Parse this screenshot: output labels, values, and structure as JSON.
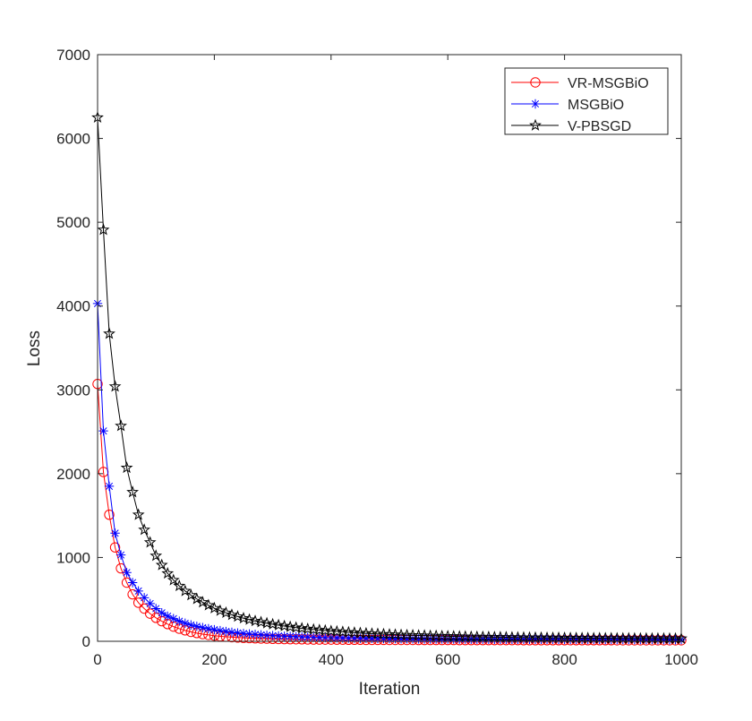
{
  "chart_data": {
    "type": "line",
    "title": "",
    "xlabel": "Iteration",
    "ylabel": "Loss",
    "xlim": [
      0,
      1000
    ],
    "ylim": [
      0,
      7000
    ],
    "xticks": [
      0,
      200,
      400,
      600,
      800,
      1000
    ],
    "yticks": [
      0,
      1000,
      2000,
      3000,
      4000,
      5000,
      6000,
      7000
    ],
    "grid": false,
    "legend_position": "top-right",
    "x": [
      0,
      10,
      20,
      30,
      40,
      50,
      60,
      70,
      80,
      90,
      100,
      110,
      120,
      130,
      140,
      150,
      160,
      170,
      180,
      190,
      200,
      210,
      220,
      230,
      240,
      250,
      260,
      270,
      280,
      290,
      300,
      310,
      320,
      330,
      340,
      350,
      360,
      370,
      380,
      390,
      400,
      410,
      420,
      430,
      440,
      450,
      460,
      470,
      480,
      490,
      500,
      510,
      520,
      530,
      540,
      550,
      560,
      570,
      580,
      590,
      600,
      610,
      620,
      630,
      640,
      650,
      660,
      670,
      680,
      690,
      700,
      710,
      720,
      730,
      740,
      750,
      760,
      770,
      780,
      790,
      800,
      810,
      820,
      830,
      840,
      850,
      860,
      870,
      880,
      890,
      900,
      910,
      920,
      930,
      940,
      950,
      960,
      970,
      980,
      990,
      1000
    ],
    "series": [
      {
        "name": "VR-MSGBiO",
        "color": "#ff0000",
        "marker": "circle",
        "values": [
          3070,
          2020,
          1510,
          1120,
          870,
          700,
          560,
          460,
          390,
          330,
          280,
          240,
          205,
          175,
          150,
          130,
          112,
          98,
          86,
          76,
          67,
          60,
          54,
          49,
          45,
          41,
          38,
          35,
          33,
          31,
          29,
          27,
          26,
          25,
          24,
          23,
          22,
          21,
          21,
          20,
          20,
          19,
          19,
          18,
          18,
          18,
          17,
          17,
          17,
          17,
          16,
          16,
          16,
          16,
          16,
          15,
          15,
          15,
          15,
          15,
          15,
          15,
          14,
          14,
          14,
          14,
          14,
          14,
          14,
          14,
          14,
          14,
          14,
          13,
          13,
          13,
          13,
          13,
          13,
          13,
          13,
          13,
          13,
          13,
          13,
          13,
          13,
          13,
          13,
          12,
          12,
          12,
          12,
          12,
          12,
          12,
          12,
          12,
          12,
          12,
          12
        ]
      },
      {
        "name": "MSGBiO",
        "color": "#0000ff",
        "marker": "asterisk",
        "values": [
          4030,
          2510,
          1850,
          1290,
          1030,
          820,
          700,
          600,
          520,
          450,
          390,
          340,
          300,
          270,
          240,
          215,
          195,
          178,
          163,
          150,
          138,
          127,
          117,
          108,
          100,
          93,
          87,
          82,
          77,
          72,
          68,
          64,
          61,
          58,
          55,
          52,
          50,
          48,
          46,
          44,
          42,
          41,
          39,
          38,
          37,
          36,
          35,
          34,
          33,
          32,
          31,
          31,
          30,
          30,
          29,
          29,
          28,
          28,
          27,
          27,
          27,
          26,
          26,
          26,
          25,
          25,
          25,
          25,
          24,
          24,
          24,
          24,
          24,
          23,
          23,
          23,
          23,
          23,
          23,
          22,
          22,
          22,
          22,
          22,
          22,
          22,
          22,
          21,
          21,
          21,
          21,
          21,
          21,
          21,
          21,
          21,
          20,
          20,
          20,
          20,
          20
        ]
      },
      {
        "name": "V-PBSGD",
        "color": "#000000",
        "marker": "pentagram",
        "values": [
          6250,
          4910,
          3670,
          3040,
          2570,
          2070,
          1780,
          1510,
          1330,
          1180,
          1020,
          910,
          810,
          730,
          660,
          600,
          550,
          505,
          465,
          430,
          395,
          365,
          340,
          315,
          295,
          275,
          258,
          242,
          228,
          215,
          203,
          192,
          182,
          172,
          163,
          155,
          147,
          140,
          134,
          128,
          122,
          117,
          112,
          107,
          103,
          99,
          95,
          91,
          88,
          85,
          82,
          79,
          76,
          74,
          72,
          70,
          68,
          66,
          64,
          62,
          60,
          59,
          57,
          56,
          54,
          53,
          52,
          51,
          50,
          49,
          48,
          47,
          46,
          45,
          44,
          43,
          43,
          42,
          41,
          41,
          40,
          39,
          39,
          38,
          38,
          37,
          37,
          36,
          36,
          35,
          35,
          35,
          34,
          34,
          34,
          33,
          33,
          33,
          32,
          32,
          32
        ]
      }
    ]
  }
}
